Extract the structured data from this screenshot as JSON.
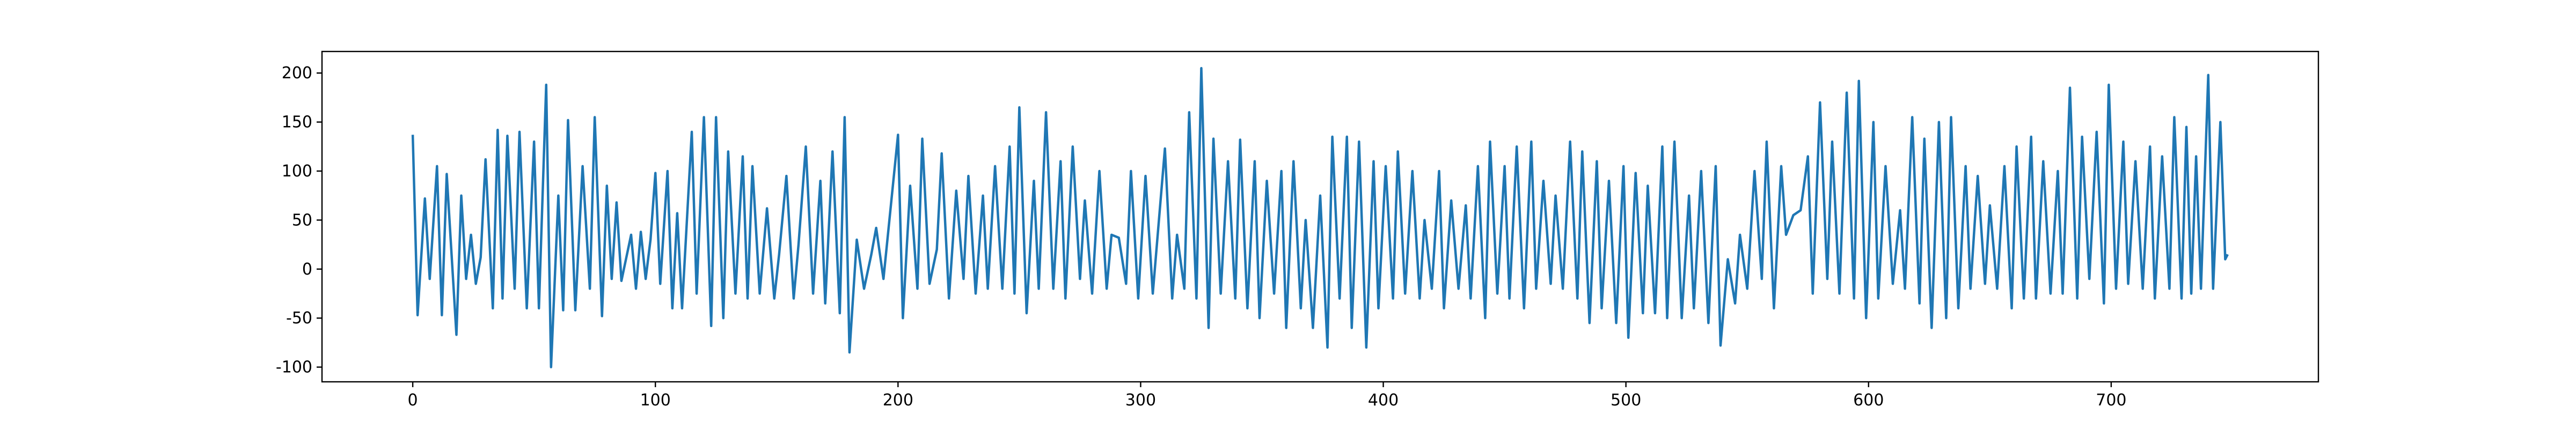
{
  "chart_data": {
    "type": "line",
    "x": [
      0,
      2,
      5,
      7,
      10,
      12,
      14,
      18,
      20,
      22,
      24,
      26,
      28,
      30,
      33,
      35,
      37,
      39,
      42,
      44,
      47,
      50,
      52,
      55,
      57,
      60,
      62,
      64,
      67,
      70,
      73,
      75,
      78,
      80,
      82,
      84,
      86,
      90,
      92,
      94,
      96,
      98,
      100,
      102,
      105,
      107,
      109,
      111,
      115,
      117,
      120,
      123,
      125,
      128,
      130,
      133,
      136,
      138,
      140,
      143,
      146,
      149,
      151,
      154,
      157,
      159,
      162,
      165,
      168,
      170,
      173,
      176,
      178,
      180,
      183,
      186,
      189,
      191,
      194,
      200,
      202,
      205,
      208,
      210,
      213,
      216,
      218,
      221,
      224,
      227,
      229,
      232,
      235,
      237,
      240,
      243,
      246,
      248,
      250,
      253,
      256,
      258,
      261,
      264,
      267,
      269,
      272,
      275,
      277,
      280,
      283,
      286,
      288,
      291,
      294,
      296,
      299,
      302,
      305,
      310,
      313,
      315,
      318,
      320,
      323,
      325,
      328,
      330,
      333,
      336,
      339,
      341,
      344,
      347,
      349,
      352,
      355,
      358,
      360,
      363,
      366,
      368,
      371,
      374,
      377,
      379,
      382,
      385,
      387,
      390,
      393,
      396,
      398,
      401,
      404,
      406,
      409,
      412,
      415,
      417,
      420,
      423,
      425,
      428,
      431,
      434,
      436,
      439,
      442,
      444,
      447,
      450,
      452,
      455,
      458,
      461,
      463,
      466,
      469,
      471,
      474,
      477,
      480,
      482,
      485,
      488,
      490,
      493,
      496,
      499,
      501,
      504,
      507,
      509,
      512,
      515,
      517,
      520,
      523,
      526,
      528,
      531,
      534,
      537,
      539,
      542,
      545,
      547,
      550,
      553,
      556,
      558,
      561,
      564,
      566,
      569,
      572,
      575,
      577,
      580,
      583,
      585,
      588,
      591,
      594,
      596,
      599,
      602,
      604,
      607,
      610,
      613,
      615,
      618,
      621,
      623,
      626,
      629,
      632,
      634,
      637,
      640,
      642,
      645,
      648,
      650,
      653,
      656,
      659,
      661,
      664,
      667,
      669,
      672,
      675,
      678,
      680,
      683,
      686,
      688,
      691,
      694,
      697,
      699,
      702,
      705,
      707,
      710,
      713,
      716,
      718,
      721,
      724,
      726,
      729,
      731,
      733,
      735,
      737,
      740,
      742,
      745,
      747,
      748
    ],
    "series": [
      {
        "color": "#1f77b4",
        "values": [
          137,
          -47,
          72,
          -10,
          105,
          -47,
          97,
          -67,
          75,
          -10,
          35,
          -15,
          12,
          112,
          -40,
          142,
          -30,
          136,
          -20,
          140,
          -40,
          130,
          -40,
          188,
          -100,
          75,
          -42,
          152,
          -42,
          105,
          -20,
          155,
          -48,
          85,
          -10,
          68,
          -12,
          35,
          -20,
          38,
          -10,
          30,
          98,
          -15,
          100,
          -40,
          57,
          -40,
          140,
          -25,
          155,
          -58,
          155,
          -50,
          120,
          -25,
          115,
          -30,
          105,
          -25,
          62,
          -30,
          15,
          95,
          -30,
          25,
          125,
          -25,
          90,
          -35,
          120,
          -45,
          155,
          -85,
          30,
          -20,
          15,
          42,
          -10,
          137,
          -50,
          85,
          -20,
          133,
          -15,
          20,
          118,
          -30,
          80,
          -10,
          95,
          -25,
          75,
          -20,
          105,
          -20,
          125,
          -25,
          165,
          -45,
          90,
          -20,
          160,
          -20,
          110,
          -30,
          125,
          -10,
          70,
          -25,
          100,
          -20,
          35,
          32,
          -15,
          100,
          -30,
          95,
          -25,
          123,
          -30,
          35,
          -20,
          160,
          -30,
          205,
          -60,
          133,
          -25,
          110,
          -30,
          132,
          -40,
          110,
          -50,
          90,
          -25,
          100,
          -60,
          110,
          -40,
          50,
          -60,
          75,
          -80,
          135,
          -30,
          135,
          -60,
          130,
          -80,
          110,
          -40,
          105,
          -30,
          120,
          -25,
          100,
          -30,
          50,
          -20,
          100,
          -40,
          70,
          -20,
          65,
          -30,
          105,
          -50,
          130,
          -25,
          105,
          -30,
          125,
          -40,
          130,
          -20,
          90,
          -15,
          75,
          -20,
          130,
          -30,
          120,
          -55,
          110,
          -40,
          90,
          -55,
          105,
          -70,
          98,
          -45,
          85,
          -45,
          125,
          -50,
          130,
          -50,
          75,
          -40,
          100,
          -55,
          105,
          -78,
          10,
          -35,
          35,
          -20,
          100,
          -10,
          130,
          -40,
          105,
          35,
          55,
          60,
          115,
          -25,
          170,
          -10,
          130,
          -25,
          180,
          -30,
          192,
          -50,
          150,
          -30,
          105,
          -15,
          60,
          -20,
          155,
          -35,
          133,
          -60,
          150,
          -50,
          155,
          -40,
          105,
          -20,
          95,
          -15,
          65,
          -20,
          105,
          -40,
          125,
          -30,
          135,
          -30,
          110,
          -25,
          100,
          -25,
          185,
          -30,
          135,
          -10,
          140,
          -35,
          188,
          -20,
          130,
          -15,
          110,
          -20,
          125,
          -30,
          115,
          -20,
          155,
          -30,
          145,
          -25,
          115,
          -20,
          198,
          -20,
          150,
          10,
          15
        ]
      }
    ],
    "xlim": [
      -37.4,
      785.4
    ],
    "ylim": [
      -115,
      222
    ],
    "xticks": [
      0,
      100,
      200,
      300,
      400,
      500,
      600,
      700
    ],
    "yticks": [
      -100,
      -50,
      0,
      50,
      100,
      150,
      200
    ]
  }
}
